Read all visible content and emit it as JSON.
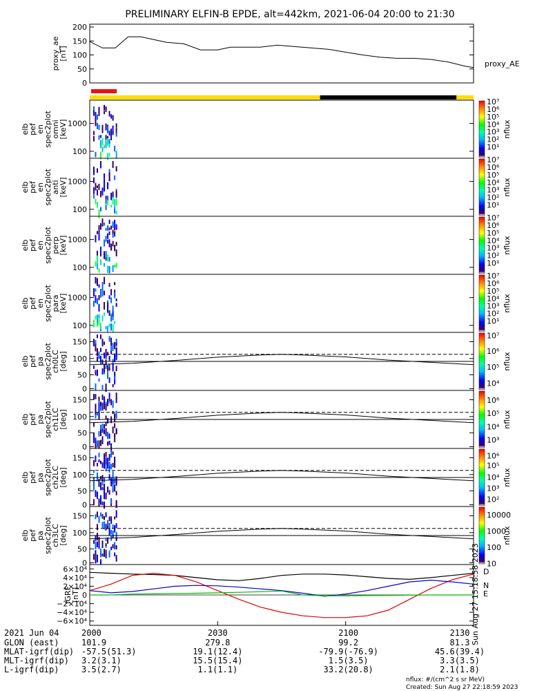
{
  "title": "PRELIMINARY ELFIN-B EPDE, alt=442km, 2021-06-04 20:00 to 21:30",
  "time_range": {
    "start_min": 0,
    "end_min": 90
  },
  "panels": [
    {
      "id": "proxy-ae",
      "ylabel": [
        "proxy_ae",
        "[nT]"
      ],
      "yticks": [
        "200",
        "150",
        "100",
        "50",
        "0"
      ],
      "tick_values": [
        200,
        150,
        100,
        50,
        0
      ],
      "ylim": [
        0,
        210
      ],
      "side_label": "proxy_AE",
      "type": "line"
    },
    {
      "id": "en-omni",
      "ylabel": [
        "elb",
        "pef",
        "en",
        "spec2plot",
        "omni",
        "[keV]"
      ],
      "yticks": [
        "1000",
        "100"
      ],
      "cbar_label": "nflux",
      "cbar_ticks": [
        "10⁷",
        "10⁶",
        "10⁵",
        "10⁴",
        "10³",
        "10²",
        "10¹"
      ]
    },
    {
      "id": "en-anti",
      "ylabel": [
        "elb",
        "pef",
        "en",
        "spec2plot",
        "anti",
        "[keV]"
      ],
      "yticks": [
        "1000",
        "100"
      ],
      "cbar_label": "nflux",
      "cbar_ticks": [
        "10⁷",
        "10⁶",
        "10⁵",
        "10⁴",
        "10³",
        "10²",
        "10¹"
      ]
    },
    {
      "id": "en-perp",
      "ylabel": [
        "elb",
        "pef",
        "en",
        "spec2plot",
        "perp",
        "[keV]"
      ],
      "yticks": [
        "1000",
        "100"
      ],
      "cbar_label": "nflux",
      "cbar_ticks": [
        "10⁷",
        "10⁶",
        "10⁵",
        "10⁴",
        "10³",
        "10²",
        "10¹"
      ]
    },
    {
      "id": "en-para",
      "ylabel": [
        "elb",
        "pef",
        "en",
        "spec2plot",
        "para",
        "[keV]"
      ],
      "yticks": [
        "1000",
        "100"
      ],
      "cbar_label": "nflux",
      "cbar_ticks": [
        "10⁷",
        "10⁶",
        "10⁵",
        "10⁴",
        "10³",
        "10²",
        "10¹"
      ]
    },
    {
      "id": "pa-ch0",
      "ylabel": [
        "elb",
        "pef",
        "pa",
        "spec2plot",
        "ch0LC",
        "[deg]"
      ],
      "yticks": [
        "150",
        "100",
        "50",
        "0"
      ],
      "cbar_label": "nflux",
      "cbar_ticks": [
        "10⁷",
        "10⁶",
        "10⁵",
        "10⁴"
      ]
    },
    {
      "id": "pa-ch1",
      "ylabel": [
        "elb",
        "pef",
        "pa",
        "spec2plot",
        "ch1LC",
        "[deg]"
      ],
      "yticks": [
        "150",
        "100",
        "50",
        "0"
      ],
      "cbar_label": "nflux",
      "cbar_ticks": [
        "10⁶",
        "10⁵",
        "10⁴",
        "10³"
      ]
    },
    {
      "id": "pa-ch2",
      "ylabel": [
        "elb",
        "pef",
        "pa",
        "spec2plot",
        "ch2LC",
        "[deg]"
      ],
      "yticks": [
        "150",
        "100",
        "50",
        "0"
      ],
      "cbar_label": "nflux",
      "cbar_ticks": [
        "10⁶",
        "10⁵",
        "10⁴",
        "10³",
        "10²"
      ]
    },
    {
      "id": "pa-ch3",
      "ylabel": [
        "elb",
        "pef",
        "pa",
        "spec2plot",
        "ch3LC",
        "[deg]"
      ],
      "yticks": [
        "150",
        "100",
        "50",
        "0"
      ],
      "cbar_label": "nflux",
      "cbar_ticks": [
        "10000",
        "1000",
        "100",
        "10"
      ]
    },
    {
      "id": "igrf",
      "ylabel": [
        "IGRF",
        "[nT]"
      ],
      "yticks": [
        "6×10⁴",
        "4×10⁴",
        "2×10⁴",
        "0",
        "−2×10⁴",
        "−4×10⁴",
        "−6×10⁴"
      ],
      "tick_values": [
        60000,
        40000,
        20000,
        0,
        -20000,
        -40000,
        -60000
      ],
      "ylim": [
        -70000,
        70000
      ],
      "legend": [
        "D",
        "N",
        "E"
      ],
      "side_note": "Sun Aug 27 15:18:58 2023"
    }
  ],
  "chart_data": {
    "type": "line",
    "proxy_ae": {
      "x_min": [
        0,
        3,
        6,
        9,
        12,
        15,
        18,
        22,
        26,
        30,
        33,
        36,
        40,
        44,
        48,
        52,
        56,
        60,
        64,
        68,
        72,
        76,
        80,
        84,
        88,
        90
      ],
      "values": [
        148,
        125,
        125,
        165,
        165,
        155,
        145,
        140,
        118,
        118,
        128,
        128,
        128,
        135,
        130,
        125,
        120,
        110,
        100,
        92,
        88,
        88,
        84,
        75,
        60,
        55
      ]
    },
    "pa_lines": {
      "x_min": [
        0,
        10,
        20,
        30,
        40,
        45,
        50,
        60,
        70,
        80,
        90
      ],
      "solid_upper": [
        80,
        84,
        93,
        103,
        110,
        112,
        110,
        104,
        94,
        87,
        80
      ],
      "solid_mid": [
        90,
        90,
        90,
        90,
        90,
        90,
        90,
        90,
        90,
        90,
        90
      ],
      "dashed": [
        112,
        112,
        112,
        112,
        112,
        112,
        112,
        112,
        112,
        112,
        112
      ]
    },
    "igrf": {
      "x_min": [
        0,
        5,
        10,
        15,
        20,
        25,
        30,
        35,
        40,
        45,
        50,
        55,
        60,
        65,
        70,
        75,
        80,
        85,
        90
      ],
      "D": [
        10000,
        25000,
        45000,
        50000,
        45000,
        30000,
        10000,
        -10000,
        -28000,
        -40000,
        -48000,
        -52000,
        -52000,
        -48000,
        -35000,
        -10000,
        15000,
        35000,
        48000
      ],
      "N": [
        10000,
        5000,
        8000,
        14000,
        20000,
        22000,
        21000,
        18000,
        14000,
        10000,
        4000,
        -3000,
        2000,
        10000,
        20000,
        30000,
        34000,
        30000,
        25000
      ],
      "E": [
        0,
        0,
        2000,
        2500,
        3500,
        4000,
        5000,
        6000,
        7500,
        9000,
        0,
        -2000,
        -2000,
        -1500,
        -1000,
        -500,
        0,
        0,
        0
      ],
      "Total": [
        52000,
        50000,
        48000,
        47000,
        45000,
        40000,
        35000,
        33000,
        38000,
        45000,
        48000,
        48000,
        46000,
        42000,
        38000,
        36000,
        40000,
        45000,
        50000
      ]
    }
  },
  "orbit_bars": {
    "science_zone": {
      "start_min": 0,
      "end_min": 6,
      "color": "#ee1111"
    },
    "sunlit": [
      {
        "start_min": 0,
        "end_min": 54,
        "color": "#ffdd00"
      },
      {
        "start_min": 54,
        "end_min": 86,
        "color": "#000000"
      },
      {
        "start_min": 86,
        "end_min": 90,
        "color": "#ffdd00"
      }
    ]
  },
  "time_axis": {
    "rows": [
      {
        "label": "2021 Jun 04",
        "values": [
          "2000",
          "2030",
          "2100",
          "2130"
        ]
      },
      {
        "label": "GLON (east)",
        "values": [
          "101.9",
          "279.8",
          "99.2",
          "81.3"
        ]
      },
      {
        "label": "MLAT-igrf(dip)",
        "values": [
          "-57.5(51.3)",
          "19.1(12.4)",
          "-79.9(-76.9)",
          "45.6(39.4)"
        ]
      },
      {
        "label": "MLT-igrf(dip)",
        "values": [
          "3.2(3.1)",
          "15.5(15.4)",
          "1.5(3.5)",
          "3.3(3.5)"
        ]
      },
      {
        "label": "L-igrf(dip)",
        "values": [
          "3.5(2.7)",
          "1.1(1.1)",
          "33.2(20.8)",
          "2.1(1.8)"
        ]
      }
    ],
    "tick_minutes": [
      0,
      30,
      60,
      90
    ]
  },
  "footer": {
    "units": "nflux: #/(cm^2 s sr MeV)",
    "created": "Created: Sun Aug 27 22:18:59 2023"
  },
  "colors": {
    "D": "#dd0000",
    "N": "#0000cc",
    "E": "#00bb00"
  }
}
